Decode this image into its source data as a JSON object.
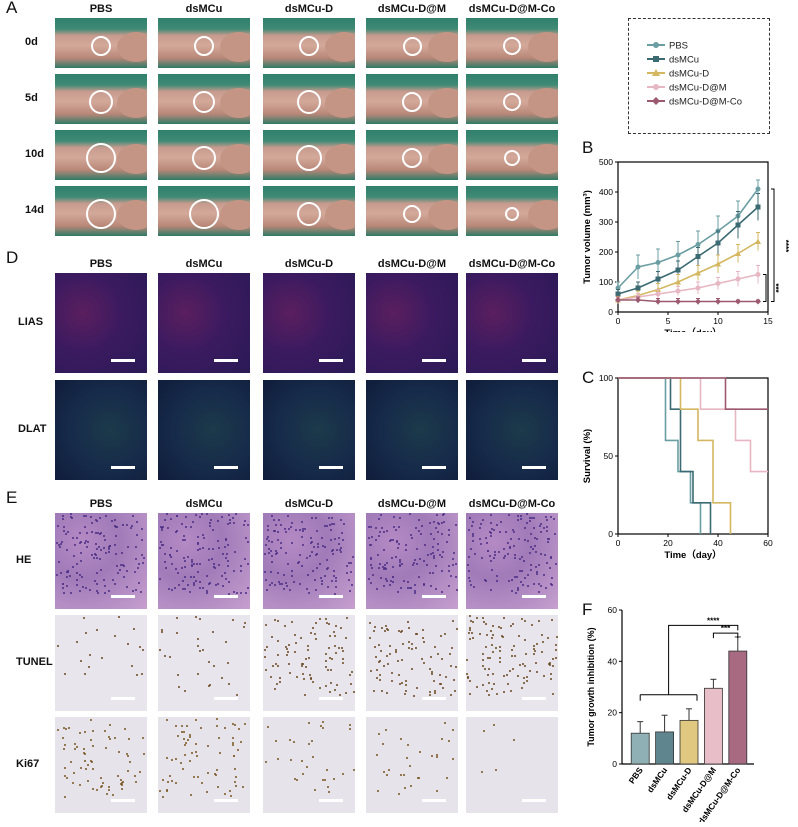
{
  "panels": {
    "A": {
      "letter": "A",
      "columns": [
        "PBS",
        "dsMCu",
        "dsMCu-D",
        "dsMCu-D@M",
        "dsMCu-D@M-Co"
      ],
      "rows": [
        "0d",
        "5d",
        "10d",
        "14d"
      ]
    },
    "D": {
      "letter": "D",
      "columns": [
        "PBS",
        "dsMCu",
        "dsMCu-D",
        "dsMCu-D@M",
        "dsMCu-D@M-Co"
      ],
      "rows": [
        "LIAS",
        "DLAT"
      ]
    },
    "E": {
      "letter": "E",
      "columns": [
        "PBS",
        "dsMCu",
        "dsMCu-D",
        "dsMCu-D@M",
        "dsMCu-D@M-Co"
      ],
      "rows": [
        "HE",
        "TUNEL",
        "Ki67"
      ]
    },
    "B": {
      "letter": "B"
    },
    "C": {
      "letter": "C"
    },
    "F": {
      "letter": "F"
    }
  },
  "legend": {
    "entries": [
      "PBS",
      "dsMCu",
      "dsMCu-D",
      "dsMCu-D@M",
      "dsMCu-D@M-Co"
    ],
    "colors": [
      "#6b9ea3",
      "#3c6a73",
      "#d4b760",
      "#e6b6c2",
      "#9c5a70"
    ]
  },
  "chart_data": [
    {
      "id": "B",
      "type": "line",
      "xlabel": "Time（day）",
      "ylabel": "Tumor volume (mm³)",
      "xlim": [
        0,
        15
      ],
      "ylim": [
        0,
        500
      ],
      "xticks": [
        0,
        5,
        10,
        15
      ],
      "yticks": [
        0,
        100,
        200,
        300,
        400,
        500
      ],
      "x": [
        0,
        2,
        4,
        6,
        8,
        10,
        12,
        14
      ],
      "series": [
        {
          "name": "PBS",
          "color": "#6b9ea3",
          "values": [
            80,
            150,
            165,
            190,
            225,
            270,
            320,
            410
          ],
          "err": [
            20,
            40,
            45,
            45,
            45,
            50,
            50,
            30
          ]
        },
        {
          "name": "dsMCu",
          "color": "#3c6a73",
          "values": [
            60,
            80,
            110,
            140,
            185,
            230,
            290,
            350
          ],
          "err": [
            15,
            20,
            25,
            30,
            30,
            40,
            45,
            45
          ]
        },
        {
          "name": "dsMCu-D",
          "color": "#d4b760",
          "values": [
            40,
            55,
            75,
            100,
            130,
            160,
            195,
            235
          ],
          "err": [
            12,
            15,
            20,
            25,
            25,
            30,
            30,
            30
          ]
        },
        {
          "name": "dsMCu-D@M",
          "color": "#e6b6c2",
          "values": [
            40,
            50,
            60,
            70,
            80,
            95,
            110,
            125
          ],
          "err": [
            10,
            12,
            15,
            15,
            20,
            20,
            25,
            30
          ]
        },
        {
          "name": "dsMCu-D@M-Co",
          "color": "#9c5a70",
          "values": [
            40,
            40,
            35,
            35,
            35,
            35,
            35,
            35
          ],
          "err": [
            10,
            10,
            10,
            10,
            10,
            10,
            5,
            5
          ]
        }
      ],
      "significance": [
        "****",
        "***"
      ]
    },
    {
      "id": "C",
      "type": "line",
      "xlabel": "Time（day）",
      "ylabel": "Survival (%)",
      "xlim": [
        0,
        60
      ],
      "ylim": [
        0,
        100
      ],
      "xticks": [
        0,
        20,
        40,
        60
      ],
      "yticks": [
        0,
        50,
        100
      ],
      "series": [
        {
          "name": "PBS",
          "color": "#6b9ea3",
          "steps": [
            [
              0,
              100
            ],
            [
              19,
              100
            ],
            [
              19,
              60
            ],
            [
              24,
              60
            ],
            [
              24,
              40
            ],
            [
              29,
              40
            ],
            [
              29,
              20
            ],
            [
              33,
              20
            ],
            [
              33,
              0
            ]
          ]
        },
        {
          "name": "dsMCu",
          "color": "#3c6a73",
          "steps": [
            [
              0,
              100
            ],
            [
              21,
              100
            ],
            [
              21,
              80
            ],
            [
              25,
              80
            ],
            [
              25,
              40
            ],
            [
              30,
              40
            ],
            [
              30,
              20
            ],
            [
              37,
              20
            ],
            [
              37,
              0
            ]
          ]
        },
        {
          "name": "dsMCu-D",
          "color": "#d4b760",
          "steps": [
            [
              0,
              100
            ],
            [
              25,
              100
            ],
            [
              25,
              80
            ],
            [
              32,
              80
            ],
            [
              32,
              60
            ],
            [
              38,
              60
            ],
            [
              38,
              20
            ],
            [
              45,
              20
            ],
            [
              45,
              0
            ]
          ]
        },
        {
          "name": "dsMCu-D@M",
          "color": "#e6b6c2",
          "steps": [
            [
              0,
              100
            ],
            [
              33,
              100
            ],
            [
              33,
              80
            ],
            [
              47,
              80
            ],
            [
              47,
              60
            ],
            [
              53,
              60
            ],
            [
              53,
              40
            ],
            [
              60,
              40
            ]
          ]
        },
        {
          "name": "dsMCu-D@M-Co",
          "color": "#9c5a70",
          "steps": [
            [
              0,
              100
            ],
            [
              43,
              100
            ],
            [
              43,
              80
            ],
            [
              60,
              80
            ]
          ]
        }
      ]
    },
    {
      "id": "F",
      "type": "bar",
      "ylabel": "Tumor growth inhibition (%)",
      "ylim": [
        0,
        60
      ],
      "yticks": [
        0,
        20,
        40,
        60
      ],
      "categories": [
        "PBS",
        "dsMCu",
        "dsMCu-D",
        "dsMCu-D@M",
        "dsMCu-D@M-Co"
      ],
      "values": [
        12,
        12.5,
        17,
        29.5,
        44
      ],
      "err": [
        4.5,
        6.5,
        4.5,
        3.5,
        5.5
      ],
      "colors": [
        "#8fb0b5",
        "#5f868e",
        "#e0c880",
        "#e8bfc9",
        "#a86a80"
      ],
      "significance": [
        "****",
        "***"
      ]
    }
  ]
}
